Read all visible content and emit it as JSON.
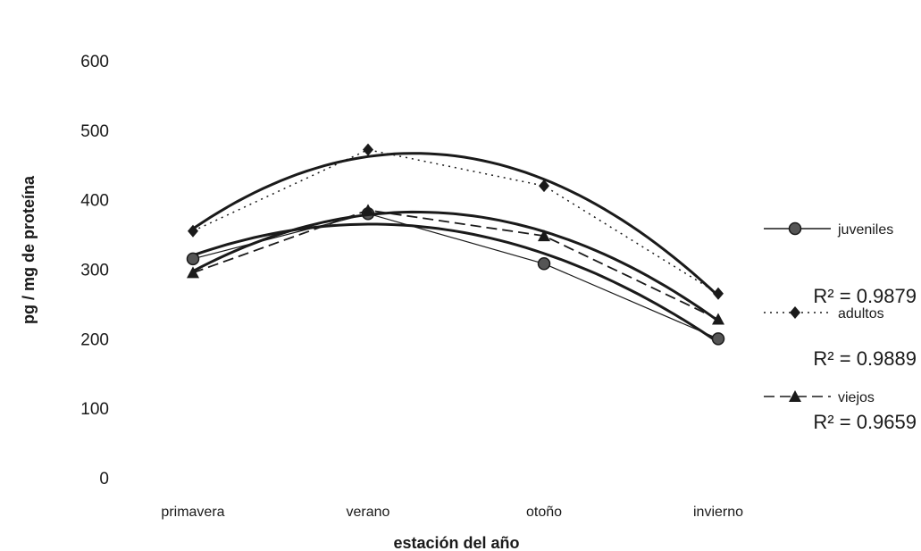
{
  "chart_data": {
    "type": "line",
    "title": "",
    "xlabel": "estación del año",
    "ylabel": "pg / mg de proteína",
    "categories": [
      "primavera",
      "verano",
      "otoño",
      "invierno"
    ],
    "yticks": [
      "0",
      "100",
      "200",
      "300",
      "400",
      "500",
      "600"
    ],
    "ylim": [
      0,
      600
    ],
    "grid": false,
    "legend_position": "right",
    "series": [
      {
        "name": "juveniles",
        "values": [
          315,
          380,
          308,
          200
        ],
        "trendline": "polynomial",
        "r2": "R² = 0.9879",
        "line_style": "solid-thin",
        "marker": "circle"
      },
      {
        "name": "adultos",
        "values": [
          355,
          472,
          420,
          265
        ],
        "trendline": "polynomial",
        "r2": "R² = 0.9889",
        "line_style": "dotted",
        "marker": "diamond"
      },
      {
        "name": "viejos",
        "values": [
          295,
          385,
          348,
          228
        ],
        "trendline": "polynomial",
        "r2": "R² = 0.9659",
        "line_style": "dashed",
        "marker": "triangle"
      }
    ],
    "colors": {
      "ink": "#1a1a1a"
    }
  }
}
